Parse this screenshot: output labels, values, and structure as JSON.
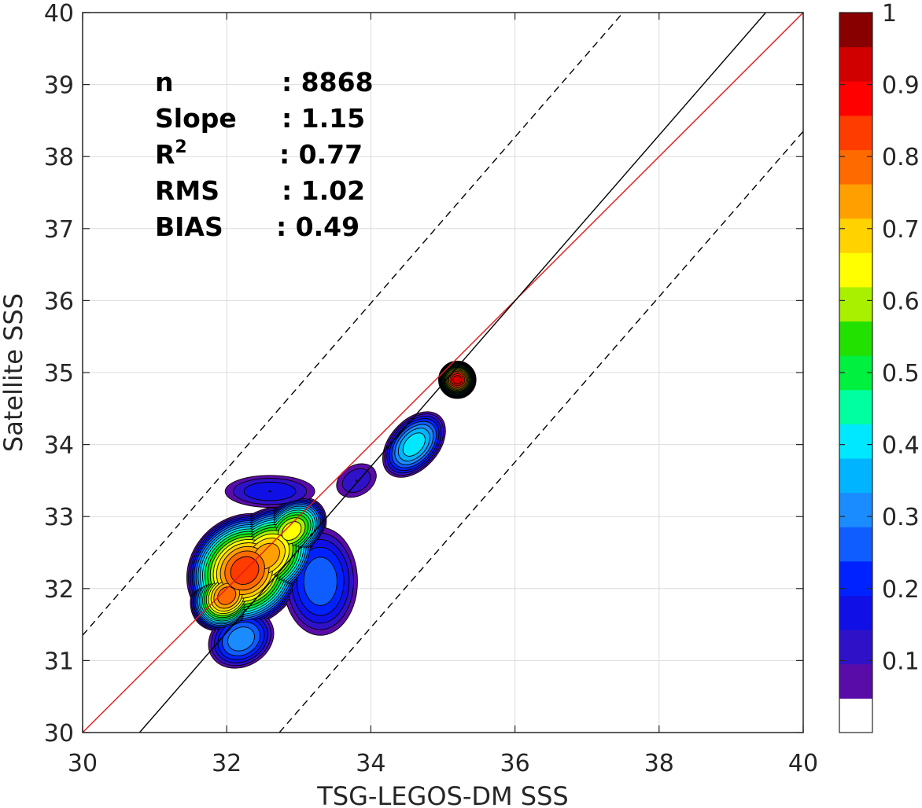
{
  "chart_data": {
    "type": "heatmap",
    "xlabel": "TSG-LEGOS-DM SSS",
    "ylabel": "Satellite SSS",
    "xlim": [
      30,
      40
    ],
    "ylim": [
      30,
      40
    ],
    "xticks": [
      "30",
      "32",
      "34",
      "36",
      "38",
      "40"
    ],
    "yticks": [
      "30",
      "31",
      "32",
      "33",
      "34",
      "35",
      "36",
      "37",
      "38",
      "39",
      "40"
    ],
    "grid": true,
    "stats": [
      {
        "label": "n",
        "value": ": 8868"
      },
      {
        "label": "Slope",
        "value": ": 1.15"
      },
      {
        "label": "R",
        "sup": "2",
        "value": ": 0.77"
      },
      {
        "label": "RMS",
        "value": ": 1.02"
      },
      {
        "label": "BIAS",
        "value": ": 0.49"
      }
    ],
    "lines": [
      {
        "role": "identity",
        "color": "#e31a1c",
        "style": "solid",
        "points": [
          [
            30,
            30
          ],
          [
            40,
            40
          ]
        ]
      },
      {
        "role": "regression",
        "color": "#000000",
        "style": "solid",
        "points": [
          [
            30.79,
            30
          ],
          [
            39.48,
            40
          ]
        ]
      },
      {
        "role": "upper-bound",
        "color": "#000000",
        "style": "dashed",
        "points": [
          [
            30,
            31.35
          ],
          [
            37.5,
            40
          ]
        ]
      },
      {
        "role": "lower-bound",
        "color": "#000000",
        "style": "dashed",
        "points": [
          [
            32.73,
            30
          ],
          [
            40,
            38.35
          ]
        ]
      }
    ],
    "density_peaks": [
      {
        "x": 32.25,
        "y": 32.25,
        "peak": 0.9,
        "rx": 0.85,
        "ry": 0.75,
        "angle": 42
      },
      {
        "x": 32.55,
        "y": 32.45,
        "peak": 0.8,
        "rx": 0.8,
        "ry": 0.6,
        "angle": 42
      },
      {
        "x": 32.0,
        "y": 31.9,
        "peak": 0.85,
        "rx": 0.55,
        "ry": 0.45,
        "angle": 42
      },
      {
        "x": 32.9,
        "y": 32.8,
        "peak": 0.7,
        "rx": 0.55,
        "ry": 0.4,
        "angle": 42
      },
      {
        "x": 33.3,
        "y": 32.1,
        "peak": 0.3,
        "rx": 0.55,
        "ry": 0.8,
        "angle": 0
      },
      {
        "x": 32.2,
        "y": 31.3,
        "peak": 0.35,
        "rx": 0.5,
        "ry": 0.4,
        "angle": 30
      },
      {
        "x": 32.6,
        "y": 33.35,
        "peak": 0.2,
        "rx": 0.7,
        "ry": 0.25,
        "angle": 0
      },
      {
        "x": 33.8,
        "y": 33.5,
        "peak": 0.15,
        "rx": 0.35,
        "ry": 0.25,
        "angle": 30
      },
      {
        "x": 34.6,
        "y": 34.0,
        "peak": 0.45,
        "rx": 0.55,
        "ry": 0.35,
        "angle": 48
      },
      {
        "x": 35.2,
        "y": 34.9,
        "peak": 1.0,
        "rx": 0.26,
        "ry": 0.26,
        "angle": 0
      }
    ],
    "colorbar": {
      "min": 0,
      "max": 1,
      "ticks": [
        "0.1",
        "0.2",
        "0.3",
        "0.4",
        "0.5",
        "0.6",
        "0.7",
        "0.8",
        "0.9",
        "1"
      ],
      "tick_values": [
        0.1,
        0.2,
        0.3,
        0.4,
        0.5,
        0.6,
        0.7,
        0.8,
        0.9,
        1.0
      ],
      "colors": [
        "#ffffff",
        "#5a0ca8",
        "#2f12c8",
        "#1010e6",
        "#0022ff",
        "#0f5cff",
        "#1a8cff",
        "#00b4ff",
        "#00e8ff",
        "#00ffa0",
        "#00f040",
        "#22e000",
        "#a8f000",
        "#ffff00",
        "#ffd200",
        "#ffa000",
        "#ff6a00",
        "#ff3c00",
        "#ff0000",
        "#d00000",
        "#880000"
      ]
    }
  }
}
